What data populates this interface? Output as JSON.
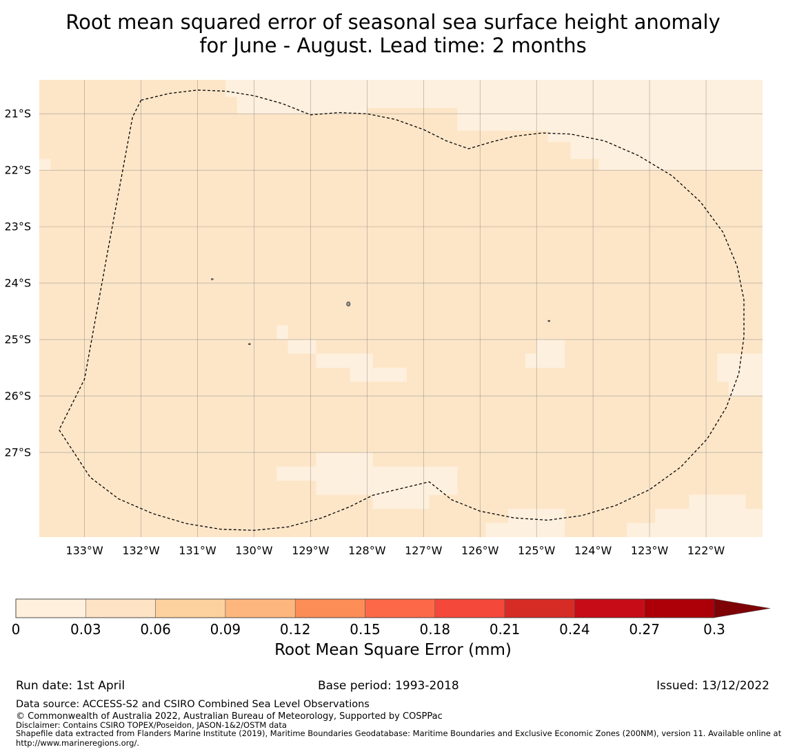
{
  "title": {
    "line1": "Root mean squared error of seasonal sea surface height anomaly",
    "line2": "for June - August. Lead time: 2 months"
  },
  "map": {
    "lon_range": [
      -133.8,
      -121.0
    ],
    "lat_range": [
      -28.5,
      -20.4
    ],
    "lat_labels": [
      {
        "value": -21,
        "text": "21°S"
      },
      {
        "value": -22,
        "text": "22°S"
      },
      {
        "value": -23,
        "text": "23°S"
      },
      {
        "value": -24,
        "text": "24°S"
      },
      {
        "value": -25,
        "text": "25°S"
      },
      {
        "value": -26,
        "text": "26°S"
      },
      {
        "value": -27,
        "text": "27°S"
      }
    ],
    "lon_labels": [
      {
        "value": -133,
        "text": "133°W"
      },
      {
        "value": -132,
        "text": "132°W"
      },
      {
        "value": -131,
        "text": "131°W"
      },
      {
        "value": -130,
        "text": "130°W"
      },
      {
        "value": -129,
        "text": "129°W"
      },
      {
        "value": -128,
        "text": "128°W"
      },
      {
        "value": -127,
        "text": "127°W"
      },
      {
        "value": -126,
        "text": "126°W"
      },
      {
        "value": -125,
        "text": "125°W"
      },
      {
        "value": -124,
        "text": "124°W"
      },
      {
        "value": -123,
        "text": "123°W"
      },
      {
        "value": -122,
        "text": "122°W"
      }
    ],
    "background_color": "#fde6c8",
    "low_color": "#fef0de",
    "low_regions": [
      {
        "lon": [
          -130.5,
          -128.0
        ],
        "lat": [
          -20.7,
          -20.4
        ]
      },
      {
        "lon": [
          -130.3,
          -128.0
        ],
        "lat": [
          -21.0,
          -20.7
        ]
      },
      {
        "lon": [
          -128.0,
          -121.0
        ],
        "lat": [
          -20.9,
          -20.4
        ]
      },
      {
        "lon": [
          -126.4,
          -121.0
        ],
        "lat": [
          -21.3,
          -20.9
        ]
      },
      {
        "lon": [
          -124.8,
          -121.0
        ],
        "lat": [
          -21.5,
          -21.3
        ]
      },
      {
        "lon": [
          -124.4,
          -121.0
        ],
        "lat": [
          -21.8,
          -21.5
        ]
      },
      {
        "lon": [
          -123.9,
          -121.0
        ],
        "lat": [
          -22.0,
          -21.8
        ]
      },
      {
        "lon": [
          -133.8,
          -133.6
        ],
        "lat": [
          -22.0,
          -21.8
        ]
      },
      {
        "lon": [
          -129.6,
          -129.4
        ],
        "lat": [
          -25.0,
          -24.75
        ]
      },
      {
        "lon": [
          -129.4,
          -128.9
        ],
        "lat": [
          -25.25,
          -25.0
        ]
      },
      {
        "lon": [
          -128.9,
          -127.9
        ],
        "lat": [
          -25.5,
          -25.25
        ]
      },
      {
        "lon": [
          -128.3,
          -127.3
        ],
        "lat": [
          -25.75,
          -25.5
        ]
      },
      {
        "lon": [
          -125.0,
          -124.5
        ],
        "lat": [
          -25.25,
          -25.0
        ]
      },
      {
        "lon": [
          -125.2,
          -124.5
        ],
        "lat": [
          -25.5,
          -25.25
        ]
      },
      {
        "lon": [
          -121.8,
          -121.0
        ],
        "lat": [
          -25.75,
          -25.25
        ]
      },
      {
        "lon": [
          -121.6,
          -121.0
        ],
        "lat": [
          -26.0,
          -25.75
        ]
      },
      {
        "lon": [
          -128.9,
          -127.9
        ],
        "lat": [
          -27.25,
          -27.0
        ]
      },
      {
        "lon": [
          -129.6,
          -126.4
        ],
        "lat": [
          -27.5,
          -27.25
        ]
      },
      {
        "lon": [
          -128.9,
          -126.4
        ],
        "lat": [
          -27.75,
          -27.5
        ]
      },
      {
        "lon": [
          -127.9,
          -126.9
        ],
        "lat": [
          -28.0,
          -27.75
        ]
      },
      {
        "lon": [
          -125.5,
          -124.5
        ],
        "lat": [
          -28.25,
          -28.0
        ]
      },
      {
        "lon": [
          -125.7,
          -124.5
        ],
        "lat": [
          -28.5,
          -28.25
        ]
      },
      {
        "lon": [
          -125.9,
          -125.0
        ],
        "lat": [
          -28.5,
          -28.25
        ]
      },
      {
        "lon": [
          -122.3,
          -121.3
        ],
        "lat": [
          -28.0,
          -27.75
        ]
      },
      {
        "lon": [
          -122.9,
          -121.0
        ],
        "lat": [
          -28.25,
          -28.0
        ]
      },
      {
        "lon": [
          -123.4,
          -121.0
        ],
        "lat": [
          -28.5,
          -28.25
        ]
      }
    ],
    "boundary": [
      [
        -132.0,
        -20.76
      ],
      [
        -131.5,
        -20.64
      ],
      [
        -131.0,
        -20.58
      ],
      [
        -130.5,
        -20.6
      ],
      [
        -130.0,
        -20.68
      ],
      [
        -129.5,
        -20.82
      ],
      [
        -129.0,
        -21.02
      ],
      [
        -128.5,
        -20.98
      ],
      [
        -128.0,
        -21.0
      ],
      [
        -127.5,
        -21.1
      ],
      [
        -127.0,
        -21.28
      ],
      [
        -126.6,
        -21.48
      ],
      [
        -126.2,
        -21.62
      ],
      [
        -125.8,
        -21.5
      ],
      [
        -125.4,
        -21.4
      ],
      [
        -124.9,
        -21.34
      ],
      [
        -124.4,
        -21.36
      ],
      [
        -123.8,
        -21.48
      ],
      [
        -123.2,
        -21.74
      ],
      [
        -122.6,
        -22.1
      ],
      [
        -122.1,
        -22.56
      ],
      [
        -121.7,
        -23.1
      ],
      [
        -121.45,
        -23.7
      ],
      [
        -121.33,
        -24.3
      ],
      [
        -121.33,
        -24.95
      ],
      [
        -121.42,
        -25.6
      ],
      [
        -121.64,
        -26.2
      ],
      [
        -121.98,
        -26.76
      ],
      [
        -122.45,
        -27.26
      ],
      [
        -123.0,
        -27.66
      ],
      [
        -123.6,
        -27.94
      ],
      [
        -124.2,
        -28.12
      ],
      [
        -124.8,
        -28.2
      ],
      [
        -125.4,
        -28.16
      ],
      [
        -126.0,
        -28.04
      ],
      [
        -126.5,
        -27.84
      ],
      [
        -126.9,
        -27.52
      ],
      [
        -127.4,
        -27.64
      ],
      [
        -127.9,
        -27.76
      ],
      [
        -128.3,
        -27.96
      ],
      [
        -128.8,
        -28.16
      ],
      [
        -129.4,
        -28.32
      ],
      [
        -130.0,
        -28.38
      ],
      [
        -130.6,
        -28.36
      ],
      [
        -131.2,
        -28.26
      ],
      [
        -131.8,
        -28.08
      ],
      [
        -132.4,
        -27.82
      ],
      [
        -132.9,
        -27.44
      ],
      [
        -133.45,
        -26.6
      ],
      [
        -133.0,
        -25.7
      ],
      [
        -132.6,
        -23.5
      ],
      [
        -132.15,
        -21.06
      ],
      [
        -132.0,
        -20.76
      ]
    ],
    "islands": [
      {
        "lon": -128.33,
        "lat": -24.37
      },
      {
        "lon": -130.08,
        "lat": -25.08
      },
      {
        "lon": -130.74,
        "lat": -23.93
      },
      {
        "lon": -124.78,
        "lat": -24.67
      }
    ]
  },
  "colorbar": {
    "colors": [
      "#fff0dd",
      "#fde2c4",
      "#fdd19d",
      "#fdb67d",
      "#fc8d56",
      "#fb6948",
      "#f4483a",
      "#d52c26",
      "#c70c17",
      "#ac0008",
      "#7d0307"
    ],
    "ticks": [
      "0",
      "0.03",
      "0.06",
      "0.09",
      "0.12",
      "0.15",
      "0.18",
      "0.21",
      "0.24",
      "0.27",
      "0.3"
    ],
    "label": "Root Mean Square Error (mm)"
  },
  "footer": {
    "run_date": "Run date: 1st April",
    "base_period": "Base period: 1993-2018",
    "issued": "Issued: 13/12/2022",
    "data_source": "Data source: ACCESS-S2 and CSIRO Combined Sea Level Observations",
    "copyright": "© Commonwealth of Australia 2022, Australian Bureau of Meteorology, Supported by COSPPac",
    "disclaimer": "Disclaimer: Contains CSIRO TOPEX/Poseidon, JASON-1&2/OSTM data",
    "shapefile": "Shapefile data extracted from Flanders Marine Institute (2019), Maritime Boundaries Geodatabase: Maritime Boundaries and Exclusive Economic Zones (200NM), version 11. Available online at http://www.marineregions.org/."
  }
}
